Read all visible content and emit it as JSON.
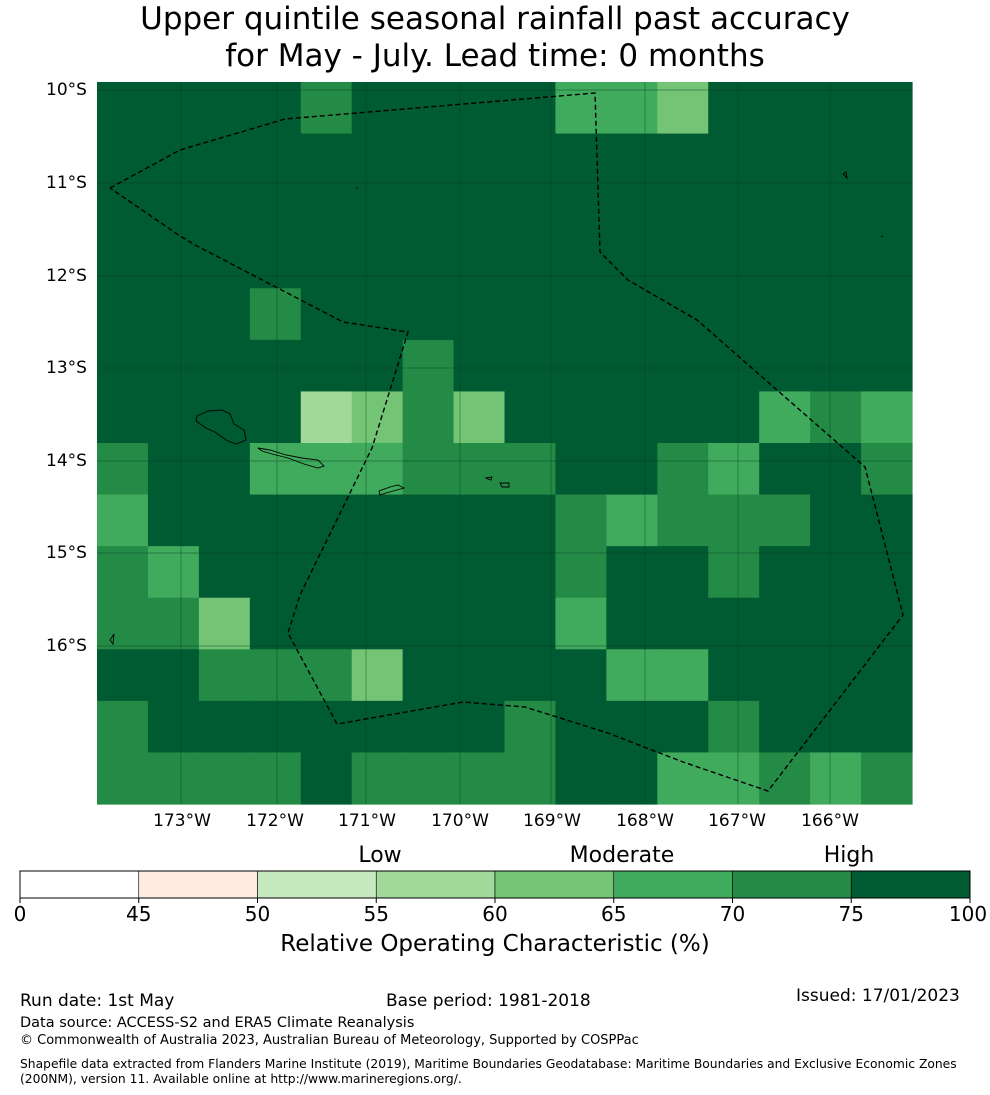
{
  "title_line1": "Upper quintile seasonal rainfall past accuracy",
  "title_line2": "for May - July. Lead time: 0 months",
  "lat_labels": [
    "10°S",
    "11°S",
    "12°S",
    "13°S",
    "14°S",
    "15°S",
    "16°S"
  ],
  "lon_labels": [
    "173°W",
    "172°W",
    "171°W",
    "170°W",
    "169°W",
    "168°W",
    "167°W",
    "166°W"
  ],
  "categories": [
    "Low",
    "Moderate",
    "High"
  ],
  "colorbar": {
    "ticks": [
      "0",
      "45",
      "50",
      "55",
      "60",
      "65",
      "70",
      "75",
      "100"
    ],
    "title": "Relative Operating Characteristic (%)",
    "colors": [
      "#ffffff",
      "#feebe2",
      "#c7e9c0",
      "#a1d99b",
      "#74c476",
      "#41ab5d",
      "#238b45",
      "#005a32"
    ]
  },
  "grid_colors": {
    "a": "#005a32",
    "b": "#238b45",
    "c": "#41ab5d",
    "d": "#74c476",
    "e": "#a1d99b"
  },
  "grid_rows": [
    "aaaabaaaaccdaaaa",
    "aaaaaaaaaaaaaaaa",
    "aaaaaaaaaaaaaaaa",
    "aaaaaaaaaaaaaaaa",
    "aaabaaaaaaaaaaaa",
    "aaaaaabaaaaaaaaa",
    "aaaaedbdaaaaacbc",
    "baacccbbbaabcaab",
    "caaaaaaaabcbbbaa",
    "bcaaaaaaabaabaaa",
    "bbdaaaaaacaaaaaa",
    "aabbbdaaaaccaaaa",
    "baaaaaaabaaabaaa",
    "bbbbabbbbaaccbcb"
  ],
  "footer": {
    "run_date": "Run date: 1st May",
    "base_period": "Base period: 1981-2018",
    "issued": "Issued: 17/01/2023",
    "data_source": "Data source: ACCESS-S2 and ERA5 Climate Reanalysis",
    "copyright": "© Commonwealth of Australia 2023, Australian Bureau of Meteorology, Supported by COSPPac",
    "shapefile": "Shapefile data extracted from Flanders Marine Institute (2019), Maritime Boundaries Geodatabase: Maritime Boundaries and Exclusive Economic Zones (200NM), version 11. Available online at http://www.marineregions.org/."
  }
}
